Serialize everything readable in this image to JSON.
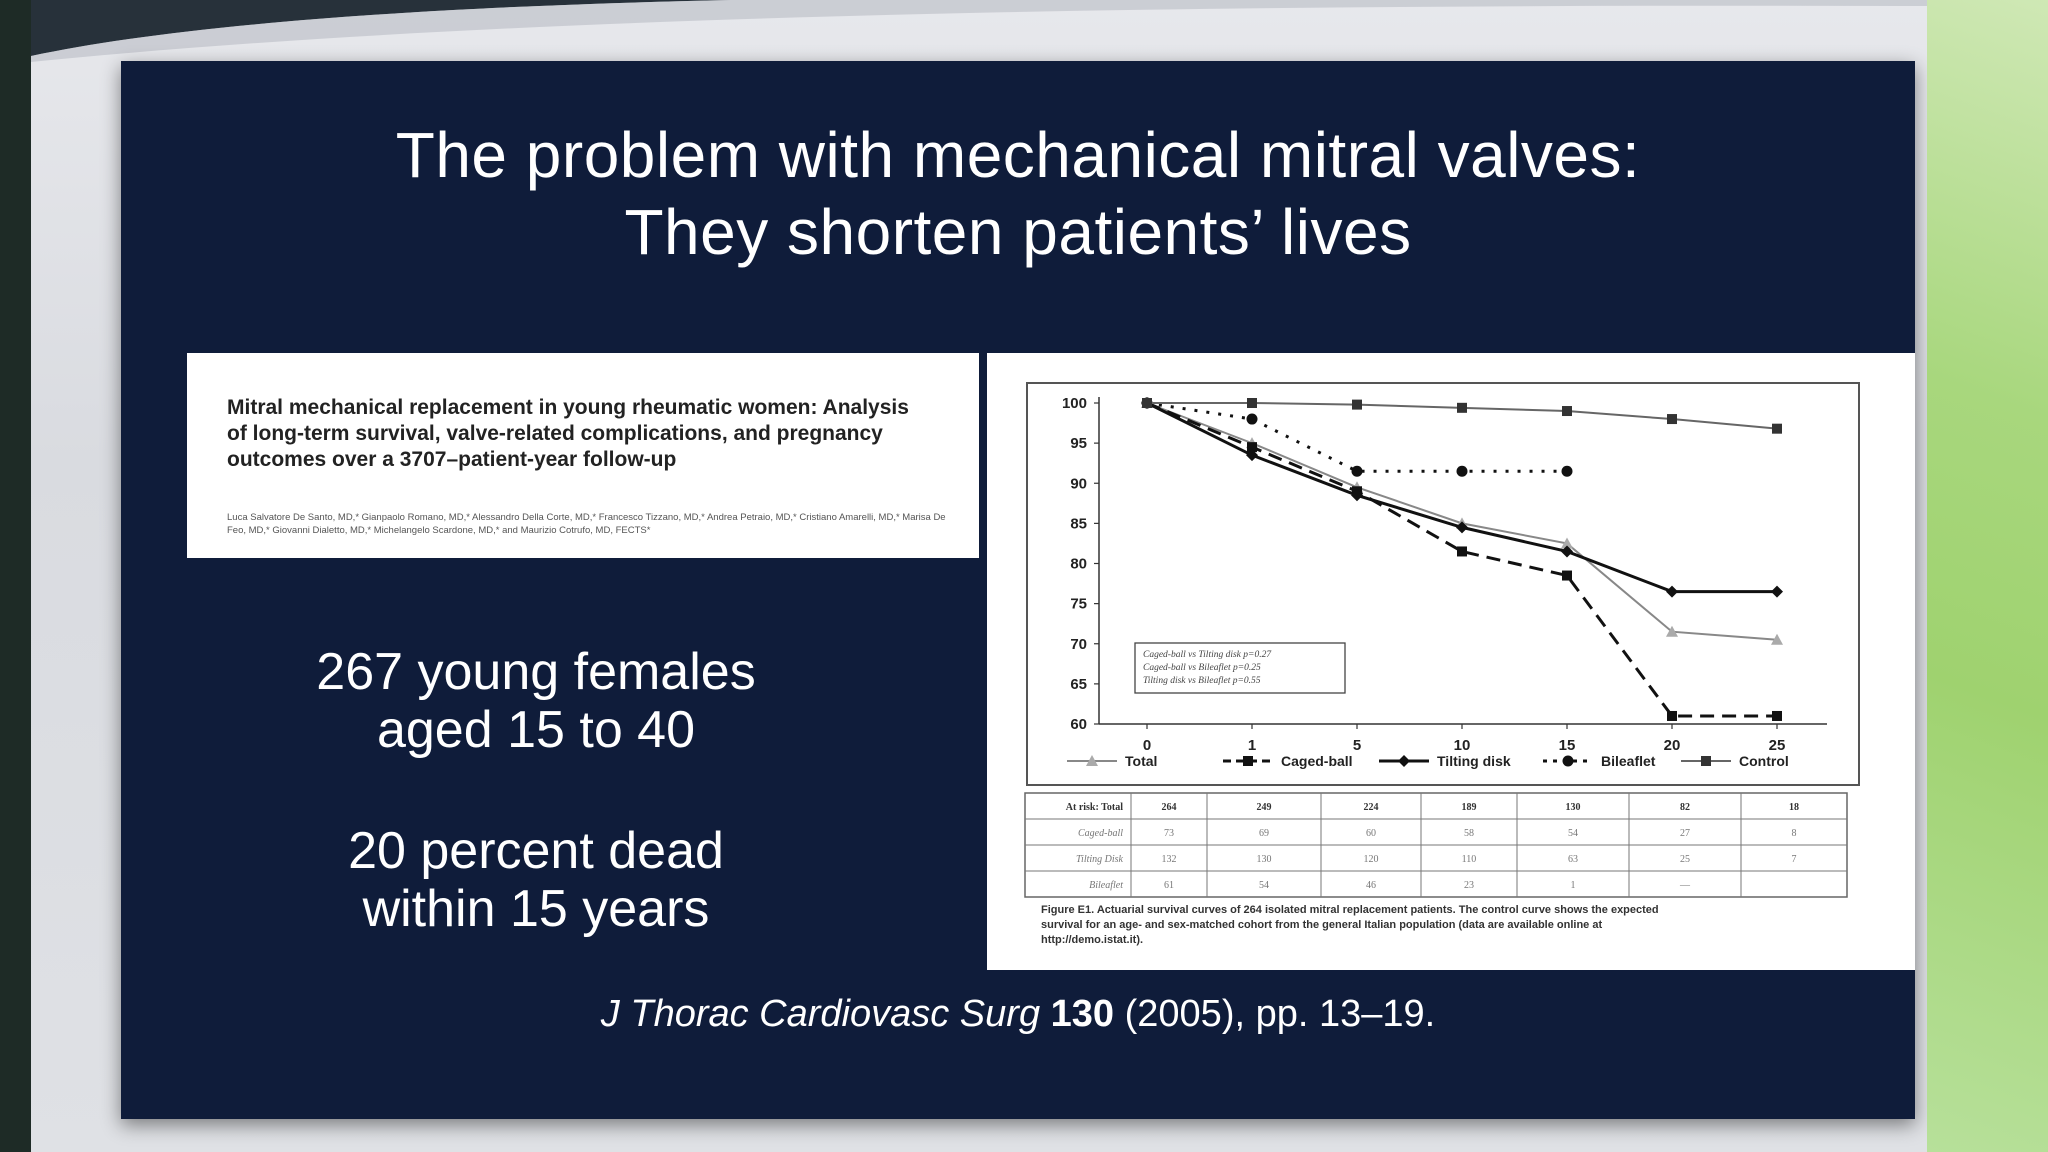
{
  "slide": {
    "title_line1": "The problem with mechanical mitral valves:",
    "title_line2": "They shorten patients’ lives",
    "paper": {
      "title": "Mitral mechanical replacement in young rheumatic women: Analysis of long-term survival, valve-related complications, and pregnancy outcomes over a 3707–patient-year follow-up",
      "authors": "Luca Salvatore De Santo, MD,* Gianpaolo Romano, MD,* Alessandro Della Corte, MD,* Francesco Tizzano, MD,* Andrea Petraio, MD,* Cristiano Amarelli, MD,* Marisa De Feo, MD,* Giovanni Dialetto, MD,* Michelangelo Scardone, MD,* and Maurizio Cotrufo, MD, FECTS*"
    },
    "stat1_line1": "267 young females",
    "stat1_line2": "aged 15 to 40",
    "stat2_line1": "20 percent dead",
    "stat2_line2": "within 15 years",
    "citation": {
      "journal": "J Thorac Cardiovasc Surg",
      "volume": "130",
      "rest": "(2005), pp. 13–19."
    }
  },
  "chart_data": {
    "type": "line",
    "title": "",
    "xlabel": "",
    "ylabel": "",
    "categories": [
      "0",
      "1",
      "5",
      "10",
      "15",
      "20",
      "25"
    ],
    "ylim": [
      60,
      100
    ],
    "yticks": [
      100,
      95,
      90,
      85,
      80,
      75,
      70,
      65,
      60
    ],
    "series": [
      {
        "name": "Total",
        "values": [
          100,
          95,
          89.5,
          85,
          82.5,
          71.5,
          70.5
        ],
        "style": "thin-grey-triangle"
      },
      {
        "name": "Caged-ball",
        "values": [
          100,
          94.5,
          89,
          81.5,
          78.5,
          61,
          61
        ],
        "style": "dashed-square"
      },
      {
        "name": "Tilting disk",
        "values": [
          100,
          93.5,
          88.5,
          84.5,
          81.5,
          76.5,
          76.5
        ],
        "style": "solid-diamond"
      },
      {
        "name": "Bileaflet",
        "values": [
          100,
          98,
          91.5,
          91.5,
          91.5,
          null,
          null
        ],
        "style": "dotted-circle"
      },
      {
        "name": "Control",
        "values": [
          100,
          100,
          99.8,
          99.4,
          99,
          98,
          96.8
        ],
        "style": "thin-square"
      }
    ],
    "pvalue_box": [
      "Caged-ball vs Tilting disk   p=0.27",
      "Caged-ball vs Bileaflet   p=0.25",
      "Tilting disk vs Bileaflet   p=0.55"
    ],
    "risk_table": {
      "rows": [
        {
          "label": "At risk: Total",
          "values": [
            "264",
            "249",
            "224",
            "189",
            "130",
            "82",
            "18"
          ]
        },
        {
          "label": "Caged-ball",
          "values": [
            "73",
            "69",
            "60",
            "58",
            "54",
            "27",
            "8"
          ]
        },
        {
          "label": "Tilting Disk",
          "values": [
            "132",
            "130",
            "120",
            "110",
            "63",
            "25",
            "7"
          ]
        },
        {
          "label": "Bileaflet",
          "values": [
            "61",
            "54",
            "46",
            "23",
            "1",
            "—",
            ""
          ]
        }
      ]
    },
    "caption": "Figure E1. Actuarial survival curves of 264 isolated mitral replacement patients. The control curve shows the expected survival for an age- and sex-matched cohort from the general Italian population (data are available online at http://demo.istat.it)."
  }
}
